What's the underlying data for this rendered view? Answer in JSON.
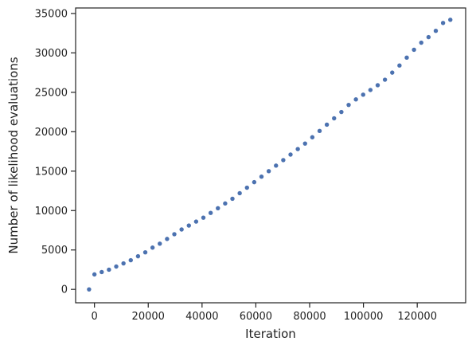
{
  "chart_data": {
    "type": "scatter",
    "title": "",
    "xlabel": "Iteration",
    "ylabel": "Number of likelihood evaluations",
    "xlim": [
      -7000,
      138000
    ],
    "ylim": [
      -1700,
      35700
    ],
    "xticks": [
      0,
      20000,
      40000,
      60000,
      80000,
      100000,
      120000
    ],
    "xtick_labels": [
      "0",
      "20000",
      "40000",
      "60000",
      "80000",
      "100000",
      "120000"
    ],
    "yticks": [
      0,
      5000,
      10000,
      15000,
      20000,
      25000,
      30000,
      35000
    ],
    "ytick_labels": [
      "0",
      "5000",
      "10000",
      "15000",
      "20000",
      "25000",
      "30000",
      "35000"
    ],
    "grid": false,
    "marker_color": "#4c72b0",
    "series": [
      {
        "x": [
          -2000,
          0,
          2700,
          5400,
          8100,
          10800,
          13500,
          16200,
          18900,
          21600,
          24300,
          27000,
          29700,
          32400,
          35100,
          37800,
          40500,
          43200,
          45900,
          48600,
          51300,
          54000,
          56700,
          59400,
          62100,
          64800,
          67500,
          70200,
          72900,
          75600,
          78300,
          81000,
          83700,
          86400,
          89100,
          91800,
          94500,
          97200,
          99900,
          102600,
          105300,
          108000,
          110700,
          113400,
          116100,
          118800,
          121500,
          124200,
          126900,
          129600,
          132300
        ],
        "y": [
          0,
          1900,
          2200,
          2500,
          2900,
          3300,
          3700,
          4200,
          4700,
          5300,
          5800,
          6400,
          7000,
          7600,
          8100,
          8600,
          9100,
          9700,
          10300,
          10900,
          11500,
          12200,
          12900,
          13600,
          14300,
          15000,
          15700,
          16400,
          17100,
          17800,
          18500,
          19300,
          20100,
          20900,
          21700,
          22500,
          23400,
          24100,
          24700,
          25300,
          25900,
          26600,
          27500,
          28400,
          29400,
          30400,
          31300,
          32000,
          32800,
          33800,
          34200
        ]
      }
    ]
  }
}
